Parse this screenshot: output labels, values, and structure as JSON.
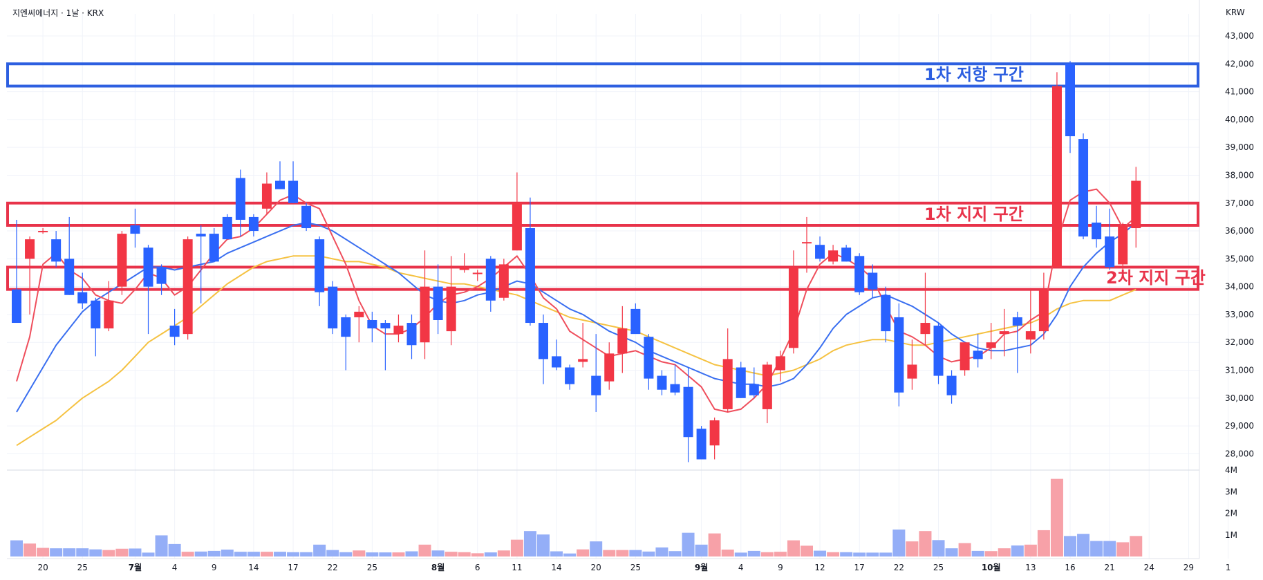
{
  "header": {
    "title": "지엔씨에너지 · 1날 · KRX",
    "currency": "KRW"
  },
  "colors": {
    "up": "#f23645",
    "down": "#2962ff",
    "up_vol": "#f7a1a8",
    "down_vol": "#94aef7",
    "ma_fast": "#ef4e5c",
    "ma_mid": "#3a6ff0",
    "ma_slow": "#f5c242",
    "resistance": "#2d5fe0",
    "support": "#e8334a"
  },
  "chart_data": {
    "type": "candlestick",
    "y_ticks": [
      "43,000",
      "42,000",
      "41,000",
      "40,000",
      "39,000",
      "38,000",
      "37,000",
      "36,000",
      "35,000",
      "34,000",
      "33,000",
      "32,000",
      "31,000",
      "30,000",
      "29,000",
      "28,000"
    ],
    "vol_ticks": [
      "4M",
      "3M",
      "2M",
      "1M"
    ],
    "x_ticks": [
      {
        "label": "20",
        "i": 2
      },
      {
        "label": "25",
        "i": 5
      },
      {
        "label": "7월",
        "i": 9,
        "bold": true
      },
      {
        "label": "4",
        "i": 12
      },
      {
        "label": "9",
        "i": 15
      },
      {
        "label": "14",
        "i": 18
      },
      {
        "label": "17",
        "i": 21
      },
      {
        "label": "22",
        "i": 24
      },
      {
        "label": "25",
        "i": 27
      },
      {
        "label": "8월",
        "i": 32,
        "bold": true
      },
      {
        "label": "6",
        "i": 35
      },
      {
        "label": "11",
        "i": 38
      },
      {
        "label": "14",
        "i": 41
      },
      {
        "label": "20",
        "i": 44
      },
      {
        "label": "25",
        "i": 47
      },
      {
        "label": "9월",
        "i": 52,
        "bold": true
      },
      {
        "label": "4",
        "i": 55
      },
      {
        "label": "9",
        "i": 58
      },
      {
        "label": "12",
        "i": 61
      },
      {
        "label": "17",
        "i": 64
      },
      {
        "label": "22",
        "i": 67
      },
      {
        "label": "25",
        "i": 70
      },
      {
        "label": "10월",
        "i": 74,
        "bold": true
      },
      {
        "label": "13",
        "i": 77
      },
      {
        "label": "16",
        "i": 80
      },
      {
        "label": "21",
        "i": 83
      },
      {
        "label": "24",
        "i": 86
      },
      {
        "label": "29",
        "i": 89
      },
      {
        "label": "1",
        "i": 92
      }
    ],
    "candles": [
      [
        33900,
        36400,
        32700,
        32700
      ],
      [
        35000,
        35800,
        33000,
        35700
      ],
      [
        36000,
        36100,
        35900,
        36000
      ],
      [
        35700,
        36000,
        34700,
        34900
      ],
      [
        35000,
        36500,
        33700,
        33700
      ],
      [
        33800,
        34500,
        33200,
        33400
      ],
      [
        33500,
        33600,
        31500,
        32500
      ],
      [
        32500,
        34200,
        32400,
        33500
      ],
      [
        34000,
        36000,
        33700,
        35900
      ],
      [
        36200,
        36800,
        35400,
        35900
      ],
      [
        35400,
        35500,
        32300,
        34000
      ],
      [
        34700,
        34800,
        33700,
        34100
      ],
      [
        32600,
        33200,
        31900,
        32200
      ],
      [
        32300,
        35800,
        32100,
        35700
      ],
      [
        35900,
        36200,
        33400,
        35800
      ],
      [
        35900,
        36100,
        34900,
        34900
      ],
      [
        36500,
        36600,
        35700,
        35700
      ],
      [
        37900,
        38200,
        35800,
        36400
      ],
      [
        36500,
        36600,
        35800,
        36000
      ],
      [
        36800,
        38100,
        36600,
        37700
      ],
      [
        37800,
        38500,
        37500,
        37500
      ],
      [
        37800,
        38500,
        37000,
        37000
      ],
      [
        36900,
        37000,
        36000,
        36100
      ],
      [
        35700,
        35800,
        33300,
        33800
      ],
      [
        34000,
        34200,
        32300,
        32500
      ],
      [
        32900,
        33000,
        31000,
        32200
      ],
      [
        32900,
        33300,
        32000,
        33100
      ],
      [
        32800,
        33100,
        32000,
        32500
      ],
      [
        32700,
        32800,
        31000,
        32500
      ],
      [
        32300,
        33000,
        32000,
        32600
      ],
      [
        32700,
        33000,
        31400,
        31900
      ],
      [
        32000,
        35300,
        31400,
        34000
      ],
      [
        34000,
        34800,
        32300,
        32800
      ],
      [
        32400,
        35100,
        31900,
        34000
      ],
      [
        34600,
        35200,
        34500,
        34700
      ],
      [
        34500,
        34600,
        34200,
        34500
      ],
      [
        35000,
        35100,
        33100,
        33500
      ],
      [
        33600,
        35000,
        33500,
        34800
      ],
      [
        35300,
        38100,
        35300,
        37000
      ],
      [
        36100,
        37200,
        32600,
        32700
      ],
      [
        32700,
        33000,
        30500,
        31400
      ],
      [
        31500,
        32100,
        31000,
        31100
      ],
      [
        31100,
        31200,
        30300,
        30500
      ],
      [
        31300,
        32700,
        31100,
        31400
      ],
      [
        30800,
        32300,
        29500,
        30100
      ],
      [
        30600,
        32000,
        30300,
        31600
      ],
      [
        31600,
        33300,
        30900,
        32500
      ],
      [
        33200,
        33400,
        32400,
        32300
      ],
      [
        32200,
        32300,
        30300,
        30700
      ],
      [
        30800,
        31000,
        30100,
        30300
      ],
      [
        30500,
        31200,
        30100,
        30200
      ],
      [
        30400,
        31100,
        27700,
        28600
      ],
      [
        28900,
        29000,
        27800,
        27800
      ],
      [
        28300,
        29300,
        27800,
        29200
      ],
      [
        29600,
        32500,
        29500,
        31400
      ],
      [
        31100,
        31300,
        30000,
        30000
      ],
      [
        30500,
        31100,
        30000,
        30100
      ],
      [
        29600,
        31300,
        29100,
        31200
      ],
      [
        31000,
        31700,
        30600,
        31500
      ],
      [
        31800,
        35300,
        31600,
        34700
      ],
      [
        35600,
        36500,
        34500,
        35600
      ],
      [
        35500,
        35800,
        34900,
        35000
      ],
      [
        34900,
        35500,
        34800,
        35300
      ],
      [
        35400,
        35500,
        34900,
        34900
      ],
      [
        35100,
        35200,
        33700,
        33800
      ],
      [
        34500,
        34800,
        33600,
        33900
      ],
      [
        33700,
        34000,
        32000,
        32400
      ],
      [
        32900,
        33400,
        29700,
        30200
      ],
      [
        30700,
        32100,
        30300,
        31200
      ],
      [
        32300,
        34500,
        31900,
        32700
      ],
      [
        32600,
        32700,
        30500,
        30800
      ],
      [
        30800,
        31000,
        29800,
        30100
      ],
      [
        31000,
        32000,
        30800,
        32000
      ],
      [
        31700,
        32300,
        31100,
        31400
      ],
      [
        31800,
        32700,
        31400,
        32000
      ],
      [
        32300,
        33200,
        31500,
        32400
      ],
      [
        32900,
        33100,
        30900,
        32600
      ],
      [
        32100,
        33900,
        31600,
        32400
      ],
      [
        32400,
        34500,
        32100,
        33900
      ],
      [
        34700,
        41700,
        34700,
        41200
      ],
      [
        42000,
        42100,
        38800,
        39400
      ],
      [
        39300,
        39500,
        35700,
        35800
      ],
      [
        36300,
        36900,
        35400,
        35700
      ],
      [
        35800,
        36800,
        34600,
        34700
      ],
      [
        34800,
        36300,
        34600,
        36200
      ],
      [
        36100,
        38300,
        35400,
        37800
      ]
    ],
    "volumes": [
      0.75,
      0.6,
      0.4,
      0.38,
      0.38,
      0.38,
      0.33,
      0.3,
      0.36,
      0.37,
      0.18,
      0.98,
      0.58,
      0.22,
      0.23,
      0.26,
      0.32,
      0.22,
      0.22,
      0.22,
      0.22,
      0.2,
      0.2,
      0.55,
      0.3,
      0.2,
      0.28,
      0.19,
      0.19,
      0.19,
      0.24,
      0.55,
      0.28,
      0.22,
      0.2,
      0.15,
      0.19,
      0.28,
      0.78,
      1.18,
      1.02,
      0.24,
      0.14,
      0.33,
      0.7,
      0.3,
      0.3,
      0.3,
      0.23,
      0.42,
      0.25,
      1.1,
      0.55,
      1.07,
      0.32,
      0.18,
      0.26,
      0.2,
      0.22,
      0.75,
      0.5,
      0.27,
      0.2,
      0.2,
      0.18,
      0.18,
      0.18,
      1.25,
      0.7,
      1.18,
      0.76,
      0.38,
      0.62,
      0.26,
      0.25,
      0.38,
      0.51,
      0.55,
      1.22,
      3.6,
      0.95,
      1.05,
      0.72,
      0.72,
      0.66,
      0.95
    ],
    "ma_fast": [
      30600,
      32200,
      34800,
      35200,
      34600,
      34300,
      33700,
      33500,
      33400,
      33900,
      34500,
      34300,
      33700,
      34000,
      34600,
      35200,
      35700,
      35800,
      36100,
      36600,
      37100,
      37300,
      37000,
      36800,
      35800,
      34800,
      33500,
      32600,
      32300,
      32300,
      32500,
      32900,
      33400,
      33700,
      33800,
      34000,
      34300,
      34700,
      35100,
      34400,
      33600,
      33200,
      32400,
      32100,
      31800,
      31500,
      31600,
      31700,
      31500,
      31300,
      31200,
      30800,
      30400,
      29600,
      29500,
      29600,
      30000,
      30500,
      31400,
      32400,
      33900,
      34800,
      35200,
      35000,
      34700,
      34300,
      33300,
      32400,
      32200,
      31900,
      31500,
      31300,
      31400,
      31500,
      31800,
      32300,
      32400,
      32800,
      33100,
      35600,
      37100,
      37400,
      37500,
      37000,
      36100,
      36500
    ],
    "ma_mid": [
      29500,
      30300,
      31100,
      31900,
      32500,
      33100,
      33500,
      33800,
      34100,
      34400,
      34700,
      34700,
      34600,
      34700,
      34800,
      34900,
      35200,
      35400,
      35600,
      35800,
      36000,
      36200,
      36300,
      36200,
      36000,
      35700,
      35400,
      35100,
      34800,
      34500,
      34100,
      33700,
      33500,
      33400,
      33500,
      33700,
      33800,
      34000,
      34200,
      34100,
      33800,
      33500,
      33200,
      33000,
      32700,
      32400,
      32200,
      32000,
      31700,
      31500,
      31300,
      31100,
      30900,
      30700,
      30600,
      30500,
      30500,
      30400,
      30500,
      30700,
      31200,
      31800,
      32500,
      33000,
      33300,
      33600,
      33700,
      33500,
      33300,
      33000,
      32700,
      32300,
      32000,
      31800,
      31700,
      31700,
      31800,
      31900,
      32300,
      33000,
      34000,
      34700,
      35200,
      35600,
      35900,
      36300
    ],
    "ma_slow": [
      28300,
      28600,
      28900,
      29200,
      29600,
      30000,
      30300,
      30600,
      31000,
      31500,
      32000,
      32300,
      32600,
      32900,
      33300,
      33700,
      34100,
      34400,
      34700,
      34900,
      35000,
      35100,
      35100,
      35100,
      35000,
      34900,
      34900,
      34800,
      34700,
      34500,
      34400,
      34300,
      34200,
      34100,
      34100,
      34000,
      33900,
      33800,
      33700,
      33500,
      33300,
      33100,
      32900,
      32800,
      32700,
      32600,
      32500,
      32400,
      32200,
      32000,
      31800,
      31600,
      31400,
      31200,
      31100,
      31000,
      30900,
      30800,
      30900,
      31000,
      31200,
      31400,
      31700,
      31900,
      32000,
      32100,
      32100,
      32000,
      31900,
      31900,
      32000,
      32100,
      32200,
      32300,
      32400,
      32500,
      32600,
      32700,
      32900,
      33200,
      33400,
      33500,
      33500,
      33500,
      33700,
      33900
    ],
    "zones": [
      {
        "label": "1차 저항 구간",
        "kind": "resistance",
        "low": 41200,
        "high": 42000
      },
      {
        "label": "1차 지지 구간",
        "kind": "support",
        "low": 36200,
        "high": 37000
      },
      {
        "label": "2차 지지 구간",
        "kind": "support",
        "low": 33900,
        "high": 34700
      }
    ]
  }
}
